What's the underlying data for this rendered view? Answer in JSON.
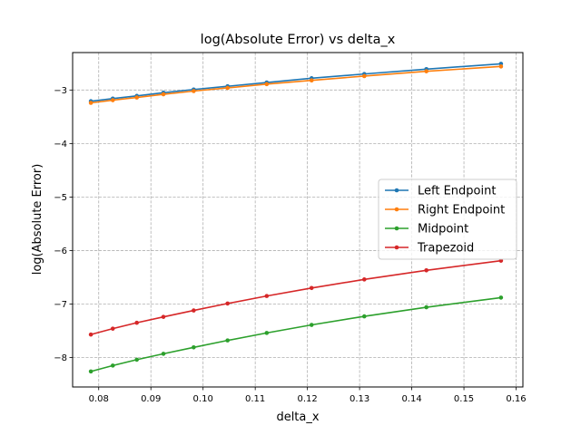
{
  "chart_data": {
    "type": "line",
    "title": "log(Absolute Error) vs delta_x",
    "xlabel": "delta_x",
    "ylabel": "log(Absolute Error)",
    "xlim": [
      0.075,
      0.1613
    ],
    "ylim": [
      -8.55,
      -2.3
    ],
    "xticks": [
      0.08,
      0.09,
      0.1,
      0.11,
      0.12,
      0.13,
      0.14,
      0.15,
      0.16
    ],
    "xtick_labels": [
      "0.08",
      "0.09",
      "0.10",
      "0.11",
      "0.12",
      "0.13",
      "0.14",
      "0.15",
      "0.16"
    ],
    "yticks": [
      -8,
      -7,
      -6,
      -5,
      -4,
      -3
    ],
    "ytick_labels": [
      "−8",
      "−7",
      "−6",
      "−5",
      "−4",
      "−3"
    ],
    "grid": true,
    "legend_position": "center-right",
    "x": [
      0.0785,
      0.0827,
      0.0873,
      0.0924,
      0.0982,
      0.1047,
      0.1122,
      0.1208,
      0.1309,
      0.1428,
      0.1571
    ],
    "series": [
      {
        "name": "Left Endpoint",
        "color": "#1f77b4",
        "values": [
          -3.21,
          -3.16,
          -3.11,
          -3.05,
          -2.99,
          -2.93,
          -2.86,
          -2.78,
          -2.7,
          -2.61,
          -2.51
        ]
      },
      {
        "name": "Right Endpoint",
        "color": "#ff7f0e",
        "values": [
          -3.24,
          -3.19,
          -3.14,
          -3.08,
          -3.02,
          -2.96,
          -2.89,
          -2.82,
          -2.74,
          -2.65,
          -2.56
        ]
      },
      {
        "name": "Midpoint",
        "color": "#2ca02c",
        "values": [
          -8.26,
          -8.15,
          -8.04,
          -7.93,
          -7.81,
          -7.68,
          -7.54,
          -7.39,
          -7.23,
          -7.06,
          -6.88
        ]
      },
      {
        "name": "Trapezoid",
        "color": "#d62728",
        "values": [
          -7.57,
          -7.46,
          -7.35,
          -7.24,
          -7.12,
          -6.99,
          -6.85,
          -6.7,
          -6.54,
          -6.37,
          -6.19
        ]
      }
    ]
  }
}
